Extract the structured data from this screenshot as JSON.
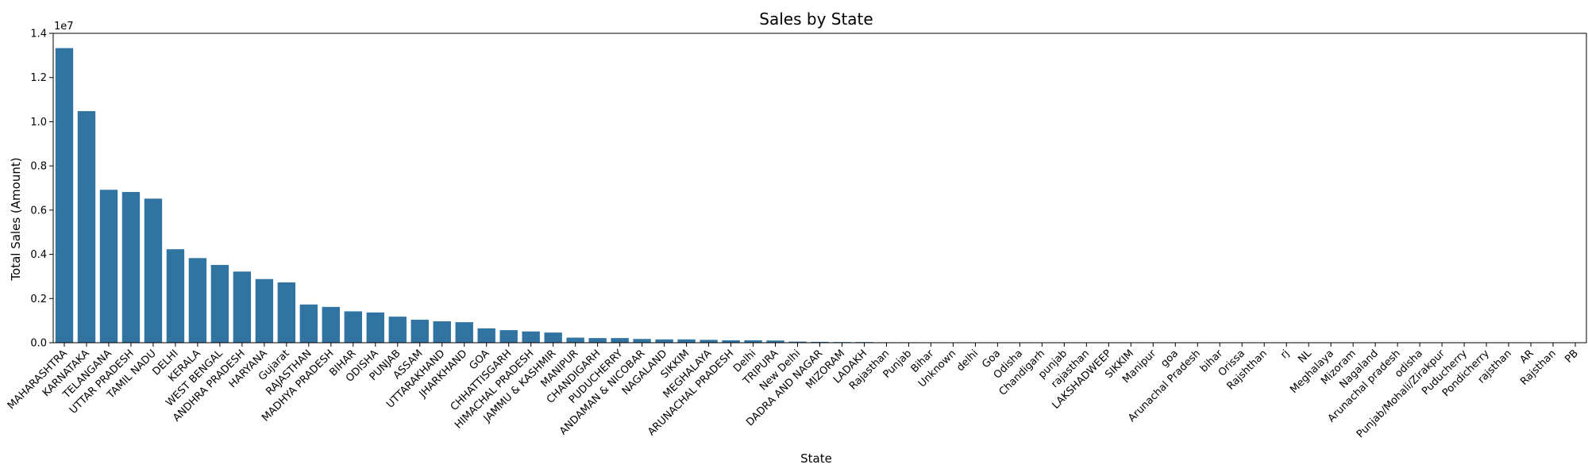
{
  "chart_data": {
    "type": "bar",
    "title": "Sales by State",
    "xlabel": "State",
    "ylabel": "Total Sales (Amount)",
    "y_scale_label": "1e7",
    "ylim": [
      0,
      14000000
    ],
    "yticks": [
      0,
      2000000,
      4000000,
      6000000,
      8000000,
      10000000,
      12000000,
      14000000
    ],
    "ytick_labels": [
      "0.0",
      "0.2",
      "0.4",
      "0.6",
      "0.8",
      "1.0",
      "1.2",
      "1.4"
    ],
    "grid": false,
    "bar_color": "#3274a1",
    "categories": [
      "MAHARASHTRA",
      "KARNATAKA",
      "TELANGANA",
      "UTTAR PRADESH",
      "TAMIL NADU",
      "DELHI",
      "KERALA",
      "WEST BENGAL",
      "ANDHRA PRADESH",
      "HARYANA",
      "Gujarat",
      "RAJASTHAN",
      "MADHYA PRADESH",
      "BIHAR",
      "ODISHA",
      "PUNJAB",
      "ASSAM",
      "UTTARAKHAND",
      "JHARKHAND",
      "GOA",
      "CHHATTISGARH",
      "HIMACHAL PRADESH",
      "JAMMU & KASHMIR",
      "MANIPUR",
      "CHANDIGARH",
      "PUDUCHERRY",
      "ANDAMAN & NICOBAR",
      "NAGALAND",
      "SIKKIM",
      "MEGHALAYA",
      "ARUNACHAL PRADESH",
      "Delhi",
      "TRIPURA",
      "New Delhi",
      "DADRA AND NAGAR",
      "MIZORAM",
      "LADAKH",
      "Rajasthan",
      "Punjab",
      "Bihar",
      "Unknown",
      "delhi",
      "Goa",
      "Odisha",
      "Chandigarh",
      "punjab",
      "rajasthan",
      "LAKSHADWEEP",
      "SIKKIM",
      "Manipur",
      "goa",
      "Arunachal Pradesh",
      "bihar",
      "Orissa",
      "Rajshthan",
      "rj",
      "NL",
      "Meghalaya",
      "Mizoram",
      "Nagaland",
      "Arunachal pradesh",
      "odisha",
      "Punjab/Mohali/Zirakpur",
      "Puducherry",
      "Pondicherry",
      "rajsthan",
      "AR",
      "Rajsthan",
      "PB"
    ],
    "values": [
      13330000,
      10480000,
      6920000,
      6820000,
      6520000,
      4230000,
      3830000,
      3520000,
      3220000,
      2880000,
      2730000,
      1730000,
      1620000,
      1420000,
      1370000,
      1180000,
      1040000,
      970000,
      930000,
      650000,
      570000,
      510000,
      460000,
      230000,
      210000,
      210000,
      170000,
      150000,
      150000,
      130000,
      110000,
      110000,
      100000,
      50000,
      40000,
      30000,
      30000,
      20000,
      20000,
      15000,
      15000,
      12000,
      10000,
      10000,
      8000,
      8000,
      6000,
      5000,
      5000,
      4000,
      3000,
      3000,
      3000,
      2000,
      2000,
      2000,
      2000,
      1500,
      1500,
      1500,
      1000,
      1000,
      1000,
      800,
      800,
      600,
      500,
      400,
      300
    ]
  }
}
